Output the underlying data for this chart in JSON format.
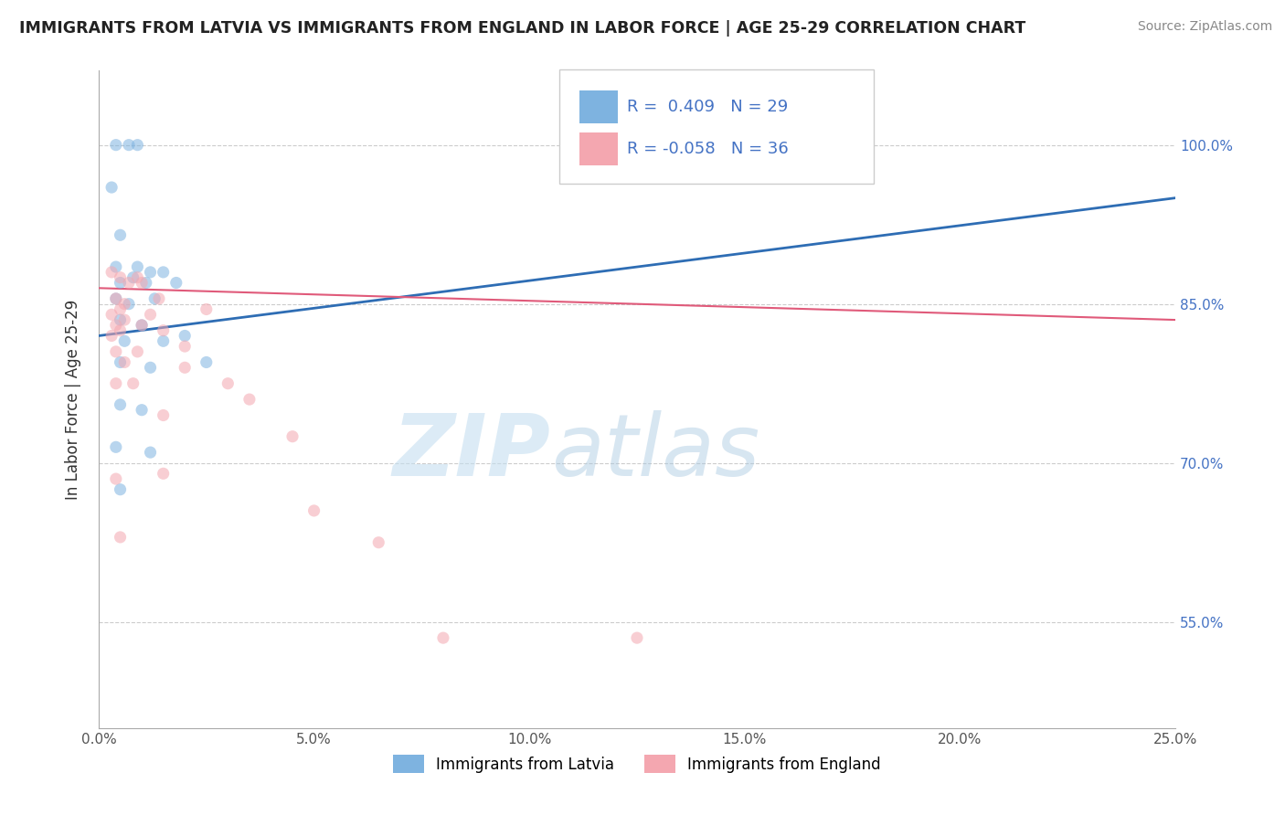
{
  "title": "IMMIGRANTS FROM LATVIA VS IMMIGRANTS FROM ENGLAND IN LABOR FORCE | AGE 25-29 CORRELATION CHART",
  "source": "Source: ZipAtlas.com",
  "ylabel": "In Labor Force | Age 25-29",
  "x_tick_labels": [
    "0.0%",
    "5.0%",
    "10.0%",
    "15.0%",
    "20.0%",
    "25.0%"
  ],
  "x_tick_values": [
    0.0,
    5.0,
    10.0,
    15.0,
    20.0,
    25.0
  ],
  "y_tick_labels": [
    "55.0%",
    "70.0%",
    "85.0%",
    "100.0%"
  ],
  "y_tick_values": [
    55.0,
    70.0,
    85.0,
    100.0
  ],
  "xlim": [
    0.0,
    25.0
  ],
  "ylim": [
    45.0,
    107.0
  ],
  "legend_r_latvia": "R =  0.409",
  "legend_n_latvia": "N = 29",
  "legend_r_england": "R = -0.058",
  "legend_n_england": "N = 36",
  "latvia_color": "#7EB3E0",
  "england_color": "#F4A7B0",
  "latvia_line_color": "#2E6DB4",
  "england_line_color": "#E05A7A",
  "scatter_alpha": 0.55,
  "scatter_size": 90,
  "watermark_left": "ZIP",
  "watermark_right": "atlas",
  "latvia_points": [
    [
      0.4,
      100.0
    ],
    [
      0.7,
      100.0
    ],
    [
      0.9,
      100.0
    ],
    [
      0.3,
      96.0
    ],
    [
      0.5,
      91.5
    ],
    [
      0.4,
      88.5
    ],
    [
      0.9,
      88.5
    ],
    [
      1.2,
      88.0
    ],
    [
      1.5,
      88.0
    ],
    [
      0.5,
      87.0
    ],
    [
      0.8,
      87.5
    ],
    [
      1.1,
      87.0
    ],
    [
      1.8,
      87.0
    ],
    [
      0.4,
      85.5
    ],
    [
      0.7,
      85.0
    ],
    [
      1.3,
      85.5
    ],
    [
      0.5,
      83.5
    ],
    [
      1.0,
      83.0
    ],
    [
      0.6,
      81.5
    ],
    [
      1.5,
      81.5
    ],
    [
      2.0,
      82.0
    ],
    [
      0.5,
      79.5
    ],
    [
      1.2,
      79.0
    ],
    [
      2.5,
      79.5
    ],
    [
      0.5,
      75.5
    ],
    [
      1.0,
      75.0
    ],
    [
      0.4,
      71.5
    ],
    [
      1.2,
      71.0
    ],
    [
      0.5,
      67.5
    ]
  ],
  "england_points": [
    [
      0.3,
      88.0
    ],
    [
      0.5,
      87.5
    ],
    [
      0.7,
      87.0
    ],
    [
      0.9,
      87.5
    ],
    [
      1.0,
      87.0
    ],
    [
      0.4,
      85.5
    ],
    [
      0.6,
      85.0
    ],
    [
      1.4,
      85.5
    ],
    [
      0.3,
      84.0
    ],
    [
      0.5,
      84.5
    ],
    [
      1.2,
      84.0
    ],
    [
      2.5,
      84.5
    ],
    [
      0.4,
      83.0
    ],
    [
      0.6,
      83.5
    ],
    [
      1.0,
      83.0
    ],
    [
      0.3,
      82.0
    ],
    [
      0.5,
      82.5
    ],
    [
      1.5,
      82.5
    ],
    [
      0.4,
      80.5
    ],
    [
      0.9,
      80.5
    ],
    [
      2.0,
      81.0
    ],
    [
      0.6,
      79.5
    ],
    [
      2.0,
      79.0
    ],
    [
      0.4,
      77.5
    ],
    [
      0.8,
      77.5
    ],
    [
      3.0,
      77.5
    ],
    [
      3.5,
      76.0
    ],
    [
      1.5,
      74.5
    ],
    [
      4.5,
      72.5
    ],
    [
      0.4,
      68.5
    ],
    [
      1.5,
      69.0
    ],
    [
      5.0,
      65.5
    ],
    [
      0.5,
      63.0
    ],
    [
      6.5,
      62.5
    ],
    [
      8.0,
      53.5
    ],
    [
      12.5,
      53.5
    ]
  ],
  "latvia_line_x": [
    0.0,
    25.0
  ],
  "latvia_line_y": [
    82.0,
    95.0
  ],
  "england_line_x": [
    0.0,
    25.0
  ],
  "england_line_y": [
    86.5,
    83.5
  ]
}
